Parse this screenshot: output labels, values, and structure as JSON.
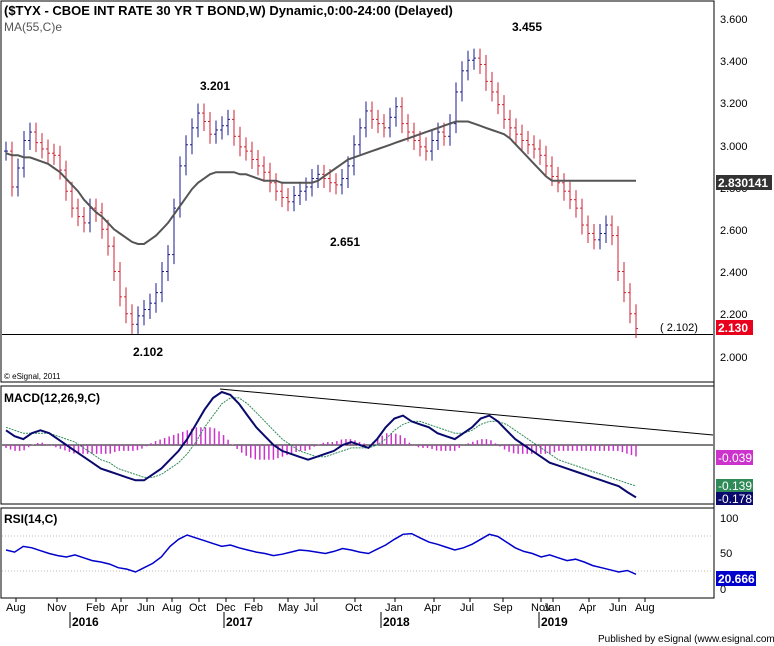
{
  "chart_data": [
    {
      "panel": "price",
      "type": "line",
      "title": "($TYX - CBOE INT RATE 30 YR T BOND,W) Dynamic,0:00-24:00 (Delayed)",
      "indicator_label": "MA(55,C)e",
      "copyright": "© eSignal, 2011",
      "ylim": [
        1.93,
        3.71
      ],
      "y_ticks": [
        "3.600",
        "3.400",
        "3.200",
        "3.000",
        "2.800",
        "2.600",
        "2.400",
        "2.200",
        "2.000"
      ],
      "last_value_label": "2.830141",
      "last_price_label": "2.130",
      "support_label": "( 2.102)",
      "support_level": 2.102,
      "annotations": [
        {
          "label": "3.201",
          "value": 3.201
        },
        {
          "label": "3.455",
          "value": 3.455
        },
        {
          "label": "2.651",
          "value": 2.651
        },
        {
          "label": "2.102",
          "value": 2.102
        }
      ],
      "series": [
        {
          "name": "$TYX",
          "color": "#1a1a8c",
          "values": [
            2.97,
            2.8,
            2.89,
            3.02,
            3.06,
            3.01,
            2.98,
            2.96,
            2.95,
            2.88,
            2.78,
            2.7,
            2.66,
            2.63,
            2.7,
            2.68,
            2.6,
            2.52,
            2.4,
            2.28,
            2.2,
            2.15,
            2.19,
            2.22,
            2.25,
            2.3,
            2.4,
            2.48,
            2.7,
            2.9,
            3.0,
            3.08,
            3.15,
            3.11,
            3.05,
            3.07,
            3.09,
            3.12,
            3.04,
            2.99,
            2.97,
            2.93,
            2.9,
            2.87,
            2.82,
            2.78,
            2.75,
            2.73,
            2.76,
            2.78,
            2.8,
            2.84,
            2.86,
            2.84,
            2.82,
            2.81,
            2.84,
            2.9,
            3.0,
            3.08,
            3.16,
            3.12,
            3.1,
            3.08,
            3.13,
            3.18,
            3.1,
            3.06,
            3.02,
            2.99,
            2.97,
            3.02,
            3.06,
            3.04,
            3.1,
            3.25,
            3.35,
            3.4,
            3.41,
            3.38,
            3.3,
            3.25,
            3.19,
            3.12,
            3.08,
            3.05,
            3.02,
            3.0,
            2.98,
            2.95,
            2.9,
            2.85,
            2.82,
            2.78,
            2.74,
            2.7,
            2.62,
            2.58,
            2.55,
            2.58,
            2.62,
            2.57,
            2.4,
            2.3,
            2.2,
            2.13
          ]
        },
        {
          "name": "MA(55,C)e",
          "color": "#555555",
          "values": [
            2.96,
            2.95,
            2.95,
            2.94,
            2.94,
            2.93,
            2.92,
            2.91,
            2.89,
            2.87,
            2.84,
            2.81,
            2.78,
            2.74,
            2.71,
            2.68,
            2.66,
            2.63,
            2.6,
            2.58,
            2.56,
            2.54,
            2.53,
            2.53,
            2.55,
            2.57,
            2.6,
            2.63,
            2.67,
            2.71,
            2.75,
            2.79,
            2.82,
            2.84,
            2.86,
            2.87,
            2.87,
            2.87,
            2.87,
            2.86,
            2.86,
            2.85,
            2.84,
            2.83,
            2.83,
            2.83,
            2.82,
            2.82,
            2.82,
            2.82,
            2.82,
            2.82,
            2.83,
            2.85,
            2.87,
            2.89,
            2.91,
            2.93,
            2.94,
            2.95,
            2.96,
            2.97,
            2.98,
            2.99,
            3.0,
            3.01,
            3.02,
            3.03,
            3.04,
            3.05,
            3.06,
            3.07,
            3.08,
            3.09,
            3.1,
            3.11,
            3.11,
            3.11,
            3.1,
            3.09,
            3.08,
            3.07,
            3.06,
            3.05,
            3.03,
            3.0,
            2.97,
            2.94,
            2.91,
            2.88,
            2.85,
            2.83,
            2.83,
            2.83,
            2.83,
            2.83,
            2.83,
            2.83,
            2.83,
            2.83,
            2.83,
            2.83,
            2.83,
            2.83,
            2.83,
            2.83
          ]
        }
      ]
    },
    {
      "panel": "macd",
      "type": "line",
      "title": "MACD(12,26,9,C)",
      "ylim": [
        -0.2,
        0.2
      ],
      "value_labels": [
        "-0.039",
        "-0.139",
        "-0.178"
      ],
      "series": [
        {
          "name": "MACD",
          "color": "#0a0a6e",
          "values": [
            0.05,
            0.03,
            0.02,
            0.04,
            0.05,
            0.04,
            0.02,
            0.0,
            -0.02,
            -0.04,
            -0.06,
            -0.08,
            -0.09,
            -0.1,
            -0.11,
            -0.12,
            -0.12,
            -0.1,
            -0.08,
            -0.05,
            -0.02,
            0.02,
            0.07,
            0.12,
            0.16,
            0.18,
            0.17,
            0.14,
            0.1,
            0.06,
            0.03,
            0.0,
            -0.02,
            -0.03,
            -0.04,
            -0.05,
            -0.04,
            -0.03,
            -0.02,
            0.0,
            0.01,
            0.0,
            -0.01,
            0.02,
            0.06,
            0.09,
            0.1,
            0.08,
            0.07,
            0.06,
            0.04,
            0.03,
            0.02,
            0.04,
            0.06,
            0.09,
            0.1,
            0.08,
            0.05,
            0.02,
            0.0,
            -0.02,
            -0.04,
            -0.06,
            -0.07,
            -0.08,
            -0.09,
            -0.1,
            -0.11,
            -0.12,
            -0.13,
            -0.14,
            -0.16,
            -0.178
          ]
        },
        {
          "name": "Signal",
          "color": "#2e8b57",
          "values": [
            0.06,
            0.05,
            0.04,
            0.04,
            0.04,
            0.04,
            0.03,
            0.02,
            0.01,
            -0.01,
            -0.03,
            -0.05,
            -0.06,
            -0.08,
            -0.09,
            -0.1,
            -0.11,
            -0.11,
            -0.1,
            -0.08,
            -0.06,
            -0.03,
            0.01,
            0.06,
            0.1,
            0.14,
            0.16,
            0.16,
            0.14,
            0.11,
            0.08,
            0.05,
            0.02,
            0.0,
            -0.02,
            -0.03,
            -0.04,
            -0.04,
            -0.03,
            -0.02,
            -0.01,
            -0.01,
            -0.01,
            0.0,
            0.02,
            0.05,
            0.07,
            0.08,
            0.08,
            0.07,
            0.06,
            0.05,
            0.04,
            0.04,
            0.05,
            0.07,
            0.08,
            0.08,
            0.07,
            0.05,
            0.03,
            0.01,
            -0.01,
            -0.03,
            -0.05,
            -0.06,
            -0.07,
            -0.08,
            -0.09,
            -0.1,
            -0.11,
            -0.12,
            -0.13,
            -0.139
          ]
        },
        {
          "name": "Histogram",
          "color": "#cc33cc",
          "values": [
            -0.01,
            -0.02,
            -0.02,
            0.0,
            0.01,
            0.0,
            -0.01,
            -0.02,
            -0.03,
            -0.03,
            -0.03,
            -0.03,
            -0.03,
            -0.02,
            -0.02,
            -0.02,
            -0.01,
            0.01,
            0.02,
            0.03,
            0.04,
            0.05,
            0.06,
            0.06,
            0.06,
            0.04,
            0.01,
            -0.02,
            -0.04,
            -0.05,
            -0.05,
            -0.05,
            -0.04,
            -0.03,
            -0.02,
            -0.02,
            0.0,
            0.01,
            0.01,
            0.02,
            0.02,
            0.01,
            0.0,
            0.02,
            0.04,
            0.04,
            0.03,
            0.0,
            -0.01,
            -0.01,
            -0.02,
            -0.02,
            -0.02,
            0.0,
            0.01,
            0.02,
            0.02,
            0.0,
            -0.02,
            -0.03,
            -0.03,
            -0.03,
            -0.03,
            -0.03,
            -0.02,
            -0.02,
            -0.02,
            -0.02,
            -0.02,
            -0.02,
            -0.02,
            -0.02,
            -0.03,
            -0.039
          ]
        }
      ]
    },
    {
      "panel": "rsi",
      "type": "line",
      "title": "RSI(14,C)",
      "ylim": [
        0,
        100
      ],
      "y_ticks": [
        "100",
        "50",
        "0"
      ],
      "value_label": "20.666",
      "series": [
        {
          "name": "RSI",
          "color": "#0000cc",
          "values": [
            55,
            52,
            60,
            58,
            54,
            50,
            47,
            45,
            48,
            44,
            40,
            38,
            35,
            30,
            28,
            24,
            30,
            36,
            45,
            60,
            70,
            76,
            72,
            68,
            64,
            60,
            62,
            58,
            55,
            52,
            50,
            47,
            49,
            52,
            55,
            54,
            52,
            50,
            53,
            57,
            55,
            52,
            50,
            56,
            62,
            70,
            77,
            78,
            72,
            66,
            63,
            59,
            55,
            58,
            63,
            70,
            77,
            74,
            66,
            58,
            53,
            50,
            45,
            48,
            44,
            40,
            42,
            38,
            33,
            30,
            27,
            24,
            26,
            20.666
          ]
        }
      ]
    }
  ],
  "x_axis": {
    "month_labels": [
      "Aug",
      "Nov",
      "Feb",
      "Apr",
      "Jun",
      "Aug",
      "Oct",
      "Dec",
      "Feb",
      "May",
      "Jul",
      "Oct",
      "Jan",
      "Apr",
      "Jul",
      "Sep",
      "Nov",
      "Jan",
      "Apr",
      "Jun",
      "Aug"
    ],
    "year_labels": [
      "2016",
      "2017",
      "2018",
      "2019"
    ]
  },
  "footer": "Published by eSignal (www.esignal.com)",
  "colors": {
    "last_price_bg": "#e8001c",
    "ma_label_bg": "#333333",
    "macd_label_bg": "#cc33cc",
    "signal_label_bg": "#2e8b57",
    "macd_value_bg": "#0a0a6e",
    "rsi_label_bg": "#0000cc",
    "trendline": "#000000",
    "bar_up": "#1a1a8c",
    "bar_down": "#cc2233"
  }
}
